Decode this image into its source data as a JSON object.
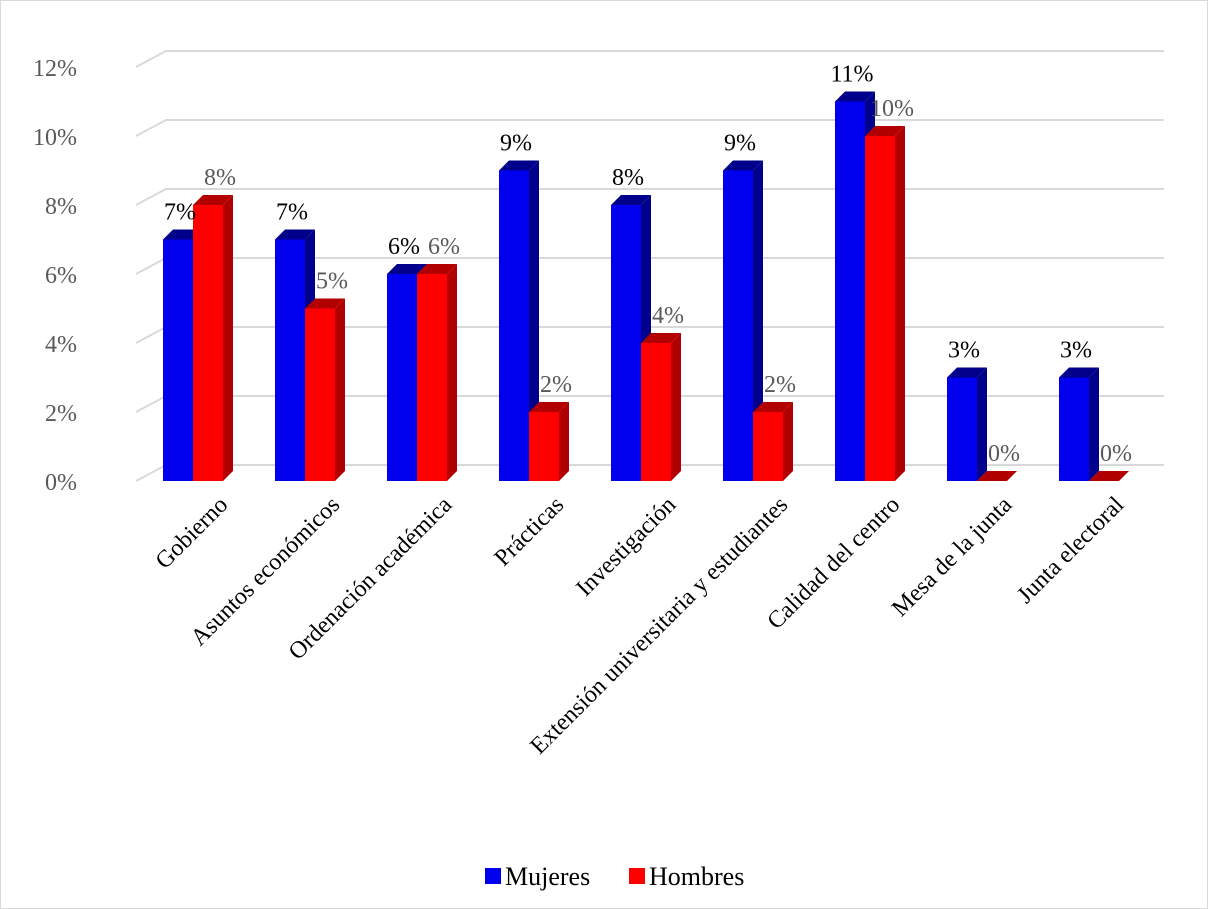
{
  "chart_data": {
    "type": "bar",
    "categories": [
      "Gobierno",
      "Asuntos económicos",
      "Ordenación académica",
      "Prácticas",
      "Investigación",
      "Extensión universitaria y estudiantes",
      "Calidad del centro",
      "Mesa de la junta",
      "Junta electoral"
    ],
    "series": [
      {
        "name": "Mujeres",
        "values": [
          7,
          7,
          6,
          9,
          8,
          9,
          11,
          3,
          3
        ],
        "data_labels": [
          "7%",
          "7%",
          "6%",
          "9%",
          "8%",
          "9%",
          "11%",
          "3%",
          "3%"
        ]
      },
      {
        "name": "Hombres",
        "values": [
          8,
          5,
          6,
          2,
          4,
          2,
          10,
          0,
          0
        ],
        "data_labels": [
          "8%",
          "5%",
          "6%",
          "2%",
          "4%",
          "2%",
          "10%",
          "0%",
          "0%"
        ]
      }
    ],
    "y_ticks": [
      "0%",
      "2%",
      "4%",
      "6%",
      "8%",
      "10%",
      "12%"
    ],
    "ylim": [
      0,
      12
    ],
    "grid": true,
    "legend_position": "bottom",
    "colors": {
      "Mujeres": "#0000ee",
      "Hombres": "#ff0000",
      "Mujeres_side": "#00008b",
      "Hombres_side": "#b20000",
      "grid": "#d9d9d9",
      "label_mujeres": "#000000",
      "label_hombres": "#595959"
    }
  }
}
